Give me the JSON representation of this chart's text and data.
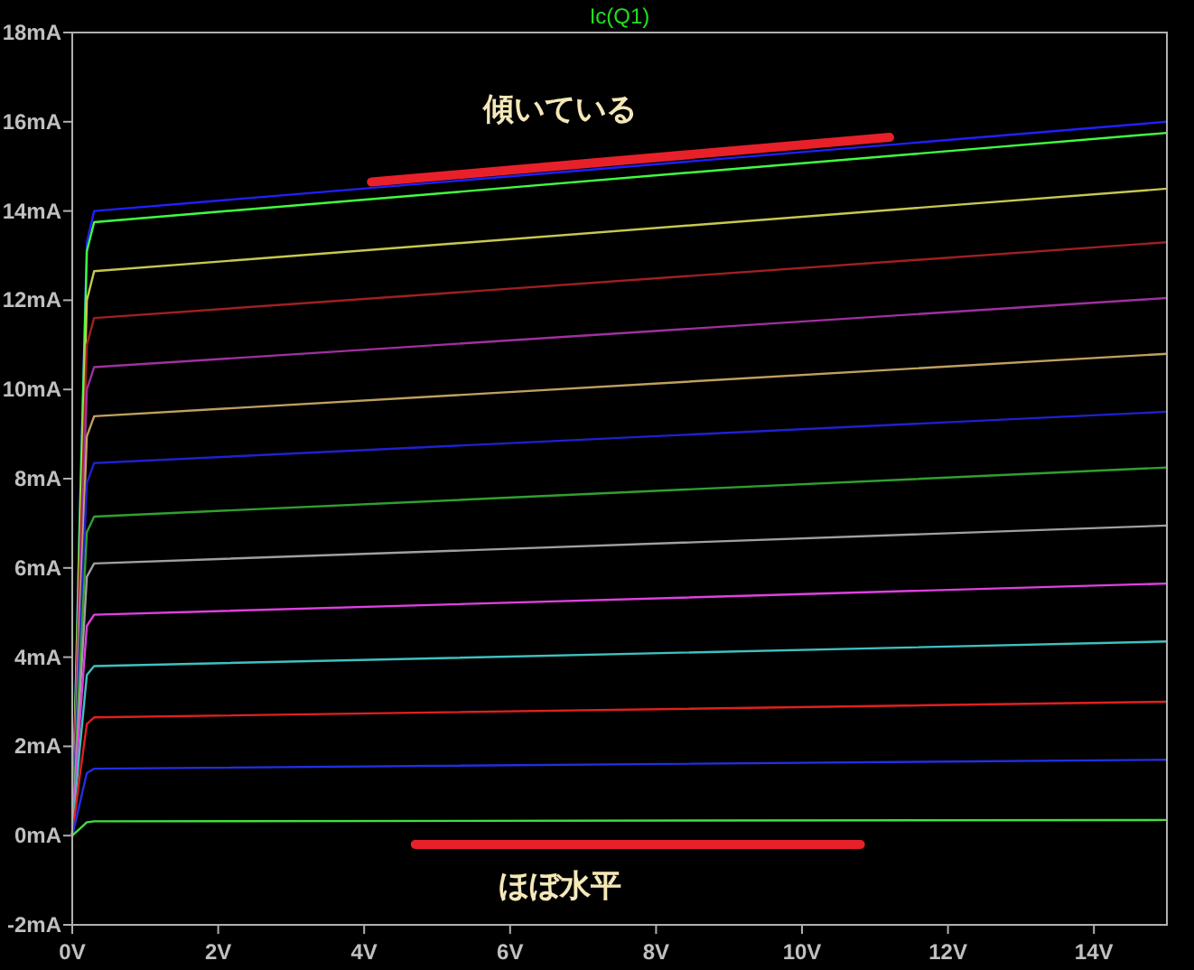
{
  "chart_data": {
    "type": "line",
    "title": "Ic(Q1)",
    "x": [
      0,
      0.1,
      0.2,
      0.3,
      15
    ],
    "series": [
      {
        "color": "#2020ff",
        "values": [
          0,
          7.0,
          13.3,
          14.0,
          16.0
        ]
      },
      {
        "color": "#40ff40",
        "values": [
          0,
          6.9,
          13.1,
          13.75,
          15.75
        ]
      },
      {
        "color": "#c8c850",
        "values": [
          0,
          6.3,
          12.0,
          12.65,
          14.5
        ]
      },
      {
        "color": "#a02020",
        "values": [
          0,
          5.8,
          11.0,
          11.6,
          13.3
        ]
      },
      {
        "color": "#a030a0",
        "values": [
          0,
          5.3,
          10.0,
          10.5,
          12.05
        ]
      },
      {
        "color": "#c0a060",
        "values": [
          0,
          4.7,
          8.95,
          9.4,
          10.8
        ]
      },
      {
        "color": "#2020d0",
        "values": [
          0,
          4.2,
          7.9,
          8.35,
          9.5
        ]
      },
      {
        "color": "#30a030",
        "values": [
          0,
          3.6,
          6.8,
          7.15,
          8.25
        ]
      },
      {
        "color": "#a0a0a0",
        "values": [
          0,
          3.0,
          5.8,
          6.1,
          6.95
        ]
      },
      {
        "color": "#e040e0",
        "values": [
          0,
          2.5,
          4.7,
          4.95,
          5.65
        ]
      },
      {
        "color": "#40c0c0",
        "values": [
          0,
          1.9,
          3.6,
          3.8,
          4.35
        ]
      },
      {
        "color": "#e02020",
        "values": [
          0,
          1.3,
          2.5,
          2.65,
          3.0
        ]
      },
      {
        "color": "#2030e0",
        "values": [
          0,
          0.7,
          1.4,
          1.5,
          1.7
        ]
      },
      {
        "color": "#40e040",
        "values": [
          0,
          0.15,
          0.3,
          0.32,
          0.35
        ]
      },
      {
        "color": "#e8202a",
        "x": [
          4.1,
          11.2
        ],
        "values": [
          14.65,
          15.65
        ]
      },
      {
        "color": "#e8202a",
        "x": [
          4.7,
          10.8
        ],
        "values": [
          -0.2,
          -0.2
        ]
      }
    ],
    "xlim": [
      0,
      15
    ],
    "ylim": [
      -2,
      18
    ],
    "xticks": [
      {
        "value": 0,
        "label": "0V"
      },
      {
        "value": 2,
        "label": "2V"
      },
      {
        "value": 4,
        "label": "4V"
      },
      {
        "value": 6,
        "label": "6V"
      },
      {
        "value": 8,
        "label": "8V"
      },
      {
        "value": 10,
        "label": "10V"
      },
      {
        "value": 12,
        "label": "12V"
      },
      {
        "value": 14,
        "label": "14V"
      }
    ],
    "yticks": [
      {
        "value": -2,
        "label": "-2mA"
      },
      {
        "value": 0,
        "label": "0mA"
      },
      {
        "value": 2,
        "label": "2mA"
      },
      {
        "value": 4,
        "label": "4mA"
      },
      {
        "value": 6,
        "label": "6mA"
      },
      {
        "value": 8,
        "label": "8mA"
      },
      {
        "value": 10,
        "label": "10mA"
      },
      {
        "value": 12,
        "label": "12mA"
      },
      {
        "value": 14,
        "label": "14mA"
      },
      {
        "value": 16,
        "label": "16mA"
      },
      {
        "value": 18,
        "label": "18mA"
      }
    ],
    "annotations": [
      "傾いている",
      "ほぼ水平"
    ]
  }
}
